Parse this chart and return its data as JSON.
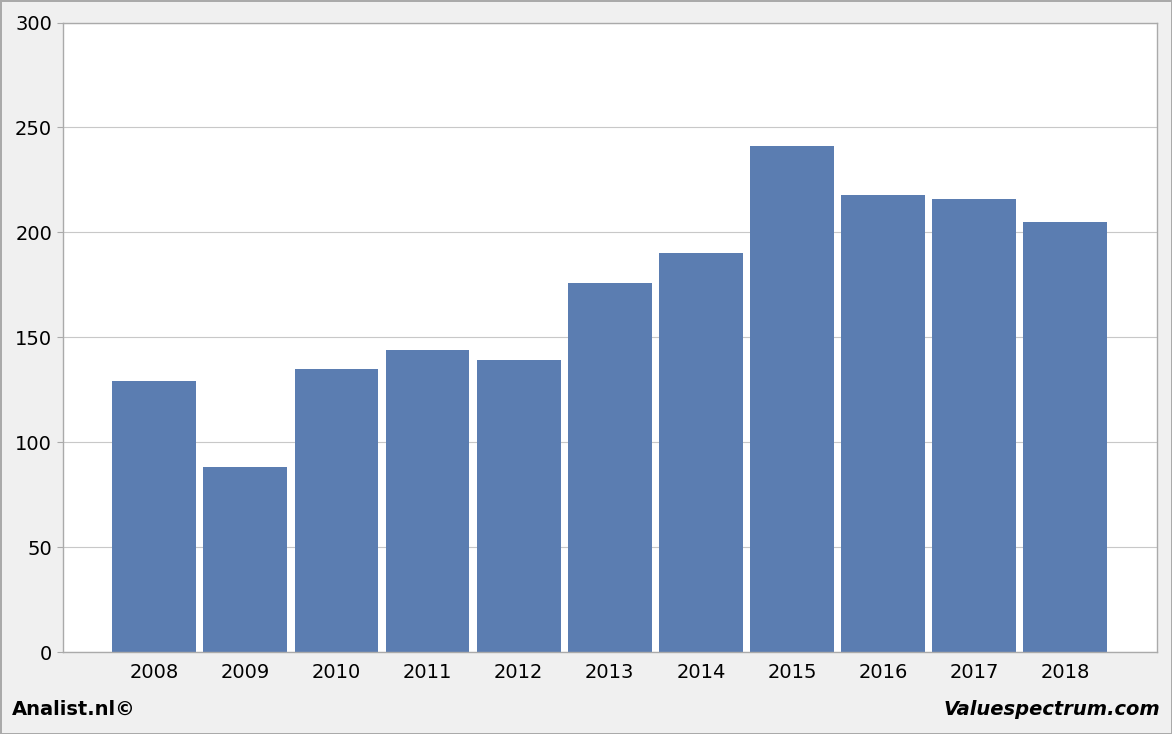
{
  "categories": [
    "2008",
    "2009",
    "2010",
    "2011",
    "2012",
    "2013",
    "2014",
    "2015",
    "2016",
    "2017",
    "2018"
  ],
  "values": [
    129,
    88,
    135,
    144,
    139,
    176,
    190,
    241,
    218,
    216,
    205
  ],
  "bar_color": "#5b7db1",
  "ylim": [
    0,
    300
  ],
  "yticks": [
    0,
    50,
    100,
    150,
    200,
    250,
    300
  ],
  "background_color": "#f0f0f0",
  "plot_background_color": "#ffffff",
  "grid_color": "#c8c8c8",
  "footer_left": "Analist.nl©",
  "footer_right": "Valuespectrum.com",
  "footer_fontsize": 14,
  "bar_edge_color": "none",
  "bar_width": 0.92,
  "outer_border_color": "#aaaaaa"
}
